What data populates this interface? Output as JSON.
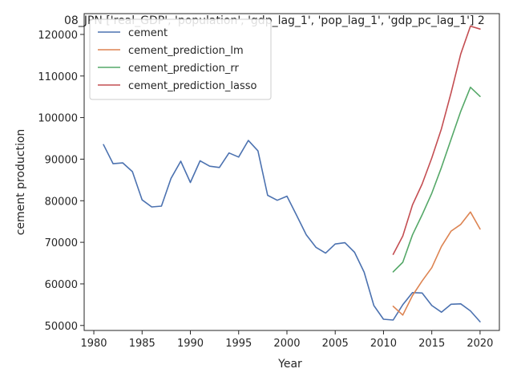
{
  "chart_data": {
    "type": "line",
    "title": "08_JPN ['real_GDP', 'population', 'gdp_lag_1', 'pop_lag_1', 'gdp_pc_lag_1'] 2",
    "xlabel": "Year",
    "ylabel": "cement production",
    "xlim": [
      1979,
      2022
    ],
    "ylim": [
      48800,
      125000
    ],
    "xticks": [
      1980,
      1985,
      1990,
      1995,
      2000,
      2005,
      2010,
      2015,
      2020
    ],
    "yticks": [
      50000,
      60000,
      70000,
      80000,
      90000,
      100000,
      110000,
      120000
    ],
    "grid": false,
    "legend_position": "upper-left",
    "series": [
      {
        "name": "cement",
        "color": "#4c72b0",
        "x": [
          1981,
          1982,
          1983,
          1984,
          1985,
          1986,
          1987,
          1988,
          1989,
          1990,
          1991,
          1992,
          1993,
          1994,
          1995,
          1996,
          1997,
          1998,
          1999,
          2000,
          2001,
          2002,
          2003,
          2004,
          2005,
          2006,
          2007,
          2008,
          2009,
          2010,
          2011,
          2012,
          2013,
          2014,
          2015,
          2016,
          2017,
          2018,
          2019,
          2020
        ],
        "y": [
          93500,
          88900,
          89100,
          87000,
          80200,
          78500,
          78700,
          85400,
          89500,
          84400,
          89600,
          88300,
          88000,
          91500,
          90500,
          94500,
          92000,
          81300,
          80100,
          81100,
          76500,
          71800,
          68800,
          67400,
          69600,
          69900,
          67600,
          62800,
          54800,
          51500,
          51300,
          55000,
          57900,
          57800,
          54800,
          53200,
          55100,
          55200,
          53500,
          50900
        ]
      },
      {
        "name": "cement_prediction_lm",
        "color": "#dd8452",
        "x": [
          2011,
          2012,
          2013,
          2014,
          2015,
          2016,
          2017,
          2018,
          2019,
          2020
        ],
        "y": [
          54600,
          52500,
          57200,
          60700,
          63900,
          69000,
          72700,
          74300,
          77300,
          73200
        ]
      },
      {
        "name": "cement_prediction_rr",
        "color": "#55a868",
        "x": [
          2011,
          2012,
          2013,
          2014,
          2015,
          2016,
          2017,
          2018,
          2019,
          2020
        ],
        "y": [
          62900,
          65200,
          71800,
          76600,
          81800,
          88000,
          94800,
          101500,
          107300,
          105100
        ]
      },
      {
        "name": "cement_prediction_lasso",
        "color": "#c44e52",
        "x": [
          2011,
          2012,
          2013,
          2014,
          2015,
          2016,
          2017,
          2018,
          2019,
          2020
        ],
        "y": [
          67100,
          71500,
          79000,
          84000,
          90300,
          97300,
          106000,
          115300,
          122000,
          121300
        ]
      }
    ]
  }
}
